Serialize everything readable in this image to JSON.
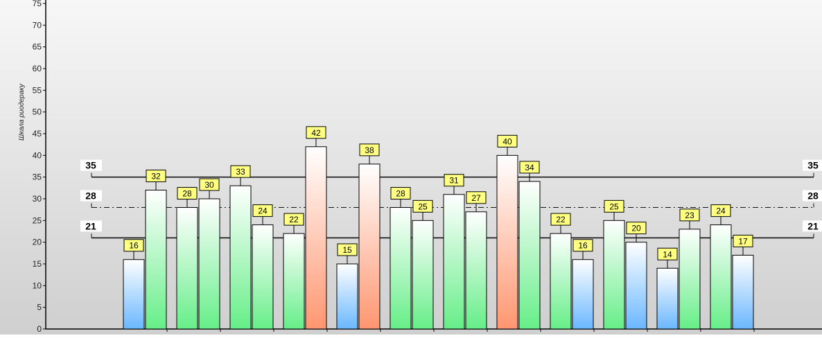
{
  "chart_data": {
    "type": "bar",
    "ylabel": "Шкала риодераку",
    "ylim": [
      0,
      75
    ],
    "yticks": [
      0,
      5,
      10,
      15,
      20,
      25,
      30,
      35,
      40,
      45,
      50,
      55,
      60,
      65,
      70,
      75
    ],
    "values": [
      16,
      32,
      28,
      30,
      33,
      24,
      22,
      42,
      15,
      38,
      28,
      25,
      31,
      27,
      40,
      34,
      22,
      16,
      25,
      20,
      14,
      23,
      24,
      17
    ],
    "reference_lines": [
      {
        "value": 35,
        "label": "35",
        "style": "solid"
      },
      {
        "value": 28,
        "label": "28",
        "style": "dash-dot"
      },
      {
        "value": 21,
        "label": "21",
        "style": "solid"
      }
    ],
    "colors": {
      "low": "#6ab7ff",
      "normal": "#6ef08e",
      "high": "#ff9a78",
      "value_label_bg": "#ffff80"
    },
    "grid": false,
    "legend": "none"
  }
}
